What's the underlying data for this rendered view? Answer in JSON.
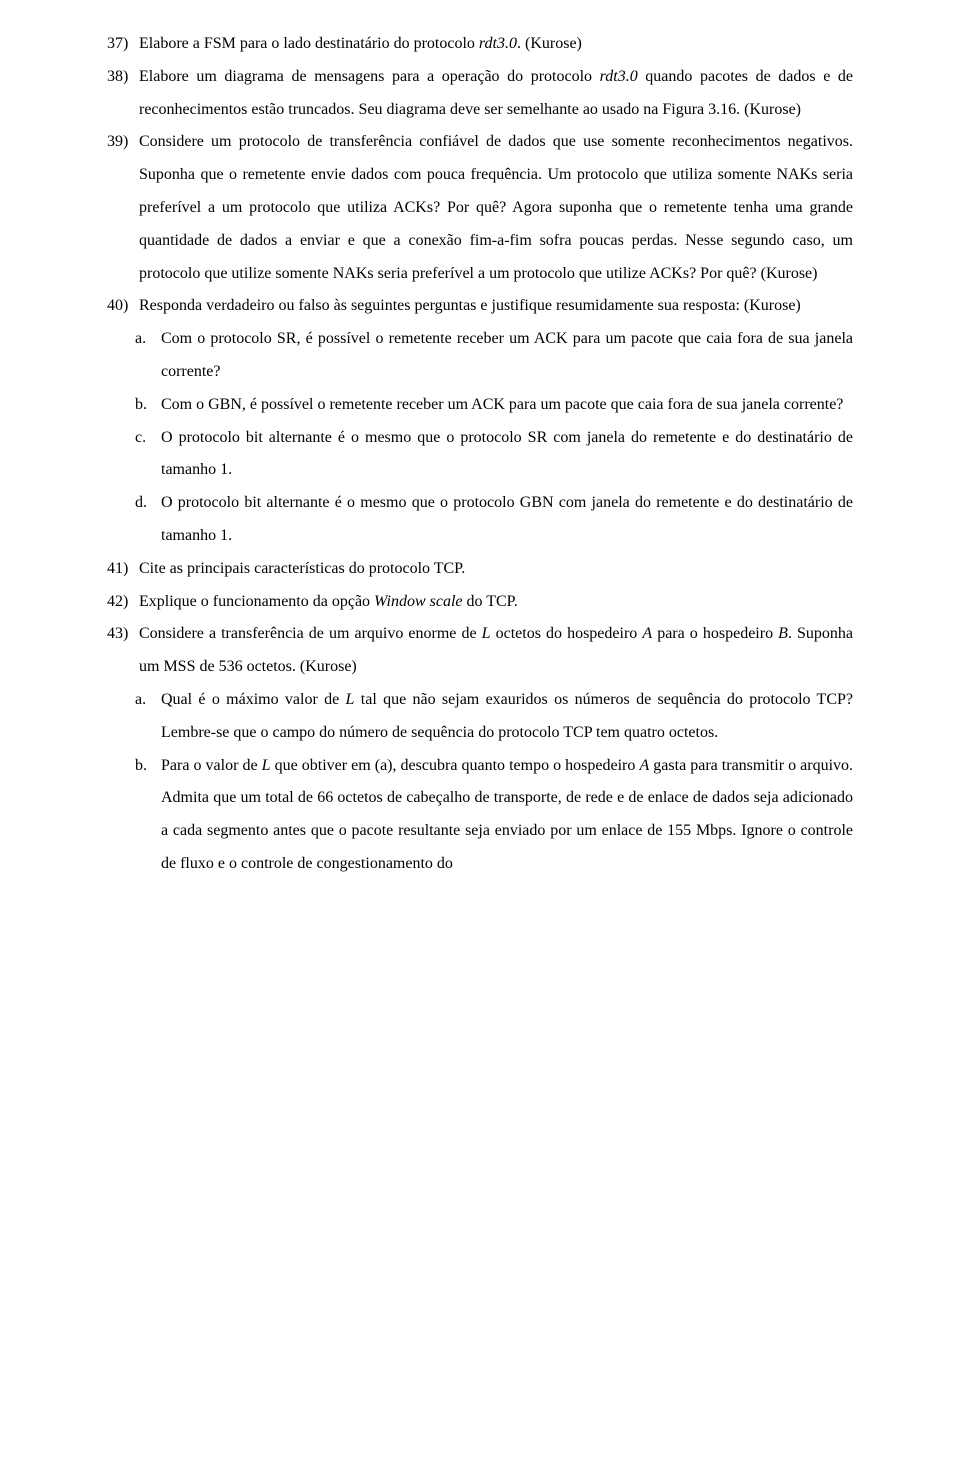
{
  "typography": {
    "font_family": "Times New Roman",
    "font_size_pt": 12,
    "line_height": 2.05,
    "text_color": "#000000",
    "background_color": "#ffffff"
  },
  "questions": [
    {
      "num": "37)",
      "runs": [
        {
          "t": "Elabore a FSM para o lado destinatário do protocolo "
        },
        {
          "t": "rdt3.0",
          "italic": true
        },
        {
          "t": ". (Kurose)"
        }
      ]
    },
    {
      "num": "38)",
      "runs": [
        {
          "t": "Elabore um diagrama de mensagens para a operação do protocolo "
        },
        {
          "t": "rdt3.0",
          "italic": true
        },
        {
          "t": " quando pacotes de dados e de reconhecimentos estão truncados. Seu diagrama deve ser semelhante ao usado na Figura 3.16. (Kurose)"
        }
      ]
    },
    {
      "num": "39)",
      "runs": [
        {
          "t": "Considere um protocolo de transferência confiável de dados que use somente reconhecimentos negativos. Suponha que o remetente envie dados com pouca frequência. Um protocolo que utiliza somente NAKs seria preferível a um protocolo que utiliza ACKs? Por quê? Agora suponha que o remetente tenha uma grande quantidade de dados a enviar e que a conexão fim-a-fim sofra poucas perdas. Nesse segundo caso, um protocolo que utilize somente NAKs seria preferível a um protocolo que utilize ACKs? Por quê? (Kurose)"
        }
      ]
    },
    {
      "num": "40)",
      "runs": [
        {
          "t": "Responda verdadeiro ou falso às seguintes perguntas e justifique resumidamente sua resposta: (Kurose)"
        }
      ],
      "subitems": [
        {
          "num": "a.",
          "runs": [
            {
              "t": "Com o protocolo SR, é possível o remetente receber um ACK para um pacote que caia fora de sua janela corrente?"
            }
          ]
        },
        {
          "num": "b.",
          "runs": [
            {
              "t": "Com o GBN, é possível o remetente receber um ACK para um pacote que caia fora de sua janela corrente?"
            }
          ]
        },
        {
          "num": "c.",
          "runs": [
            {
              "t": "O protocolo bit alternante é o mesmo que o protocolo SR com janela do remetente e do destinatário de tamanho 1."
            }
          ]
        },
        {
          "num": "d.",
          "runs": [
            {
              "t": "O protocolo bit alternante é o mesmo que o protocolo GBN com janela do remetente e do destinatário de tamanho 1."
            }
          ]
        }
      ]
    },
    {
      "num": "41)",
      "runs": [
        {
          "t": "Cite as principais características do protocolo TCP."
        }
      ]
    },
    {
      "num": "42)",
      "runs": [
        {
          "t": "Explique o funcionamento da opção "
        },
        {
          "t": "Window scale",
          "italic": true
        },
        {
          "t": " do TCP."
        }
      ]
    },
    {
      "num": "43)",
      "runs": [
        {
          "t": "Considere a transferência de um arquivo enorme de "
        },
        {
          "t": "L",
          "italic": true
        },
        {
          "t": " octetos do hospedeiro "
        },
        {
          "t": "A",
          "italic": true
        },
        {
          "t": " para o hospedeiro "
        },
        {
          "t": "B",
          "italic": true
        },
        {
          "t": ". Suponha um MSS de 536 octetos. (Kurose)"
        }
      ],
      "subitems": [
        {
          "num": "a.",
          "runs": [
            {
              "t": "Qual é o máximo valor de "
            },
            {
              "t": "L",
              "italic": true
            },
            {
              "t": " tal que não sejam exauridos os números de sequência do protocolo TCP? Lembre-se que o campo do número de sequência do protocolo TCP tem quatro octetos."
            }
          ]
        },
        {
          "num": "b.",
          "runs": [
            {
              "t": "Para o valor de "
            },
            {
              "t": "L",
              "italic": true
            },
            {
              "t": " que obtiver em (a), descubra quanto tempo o hospedeiro "
            },
            {
              "t": "A",
              "italic": true
            },
            {
              "t": " gasta para transmitir o arquivo. Admita que um total de 66 octetos de cabeçalho de transporte, de rede e de enlace de dados seja adicionado a cada segmento antes que o pacote resultante seja enviado por um enlace de 155 Mbps. Ignore o controle de fluxo e o controle de congestionamento do"
            }
          ]
        }
      ]
    }
  ]
}
